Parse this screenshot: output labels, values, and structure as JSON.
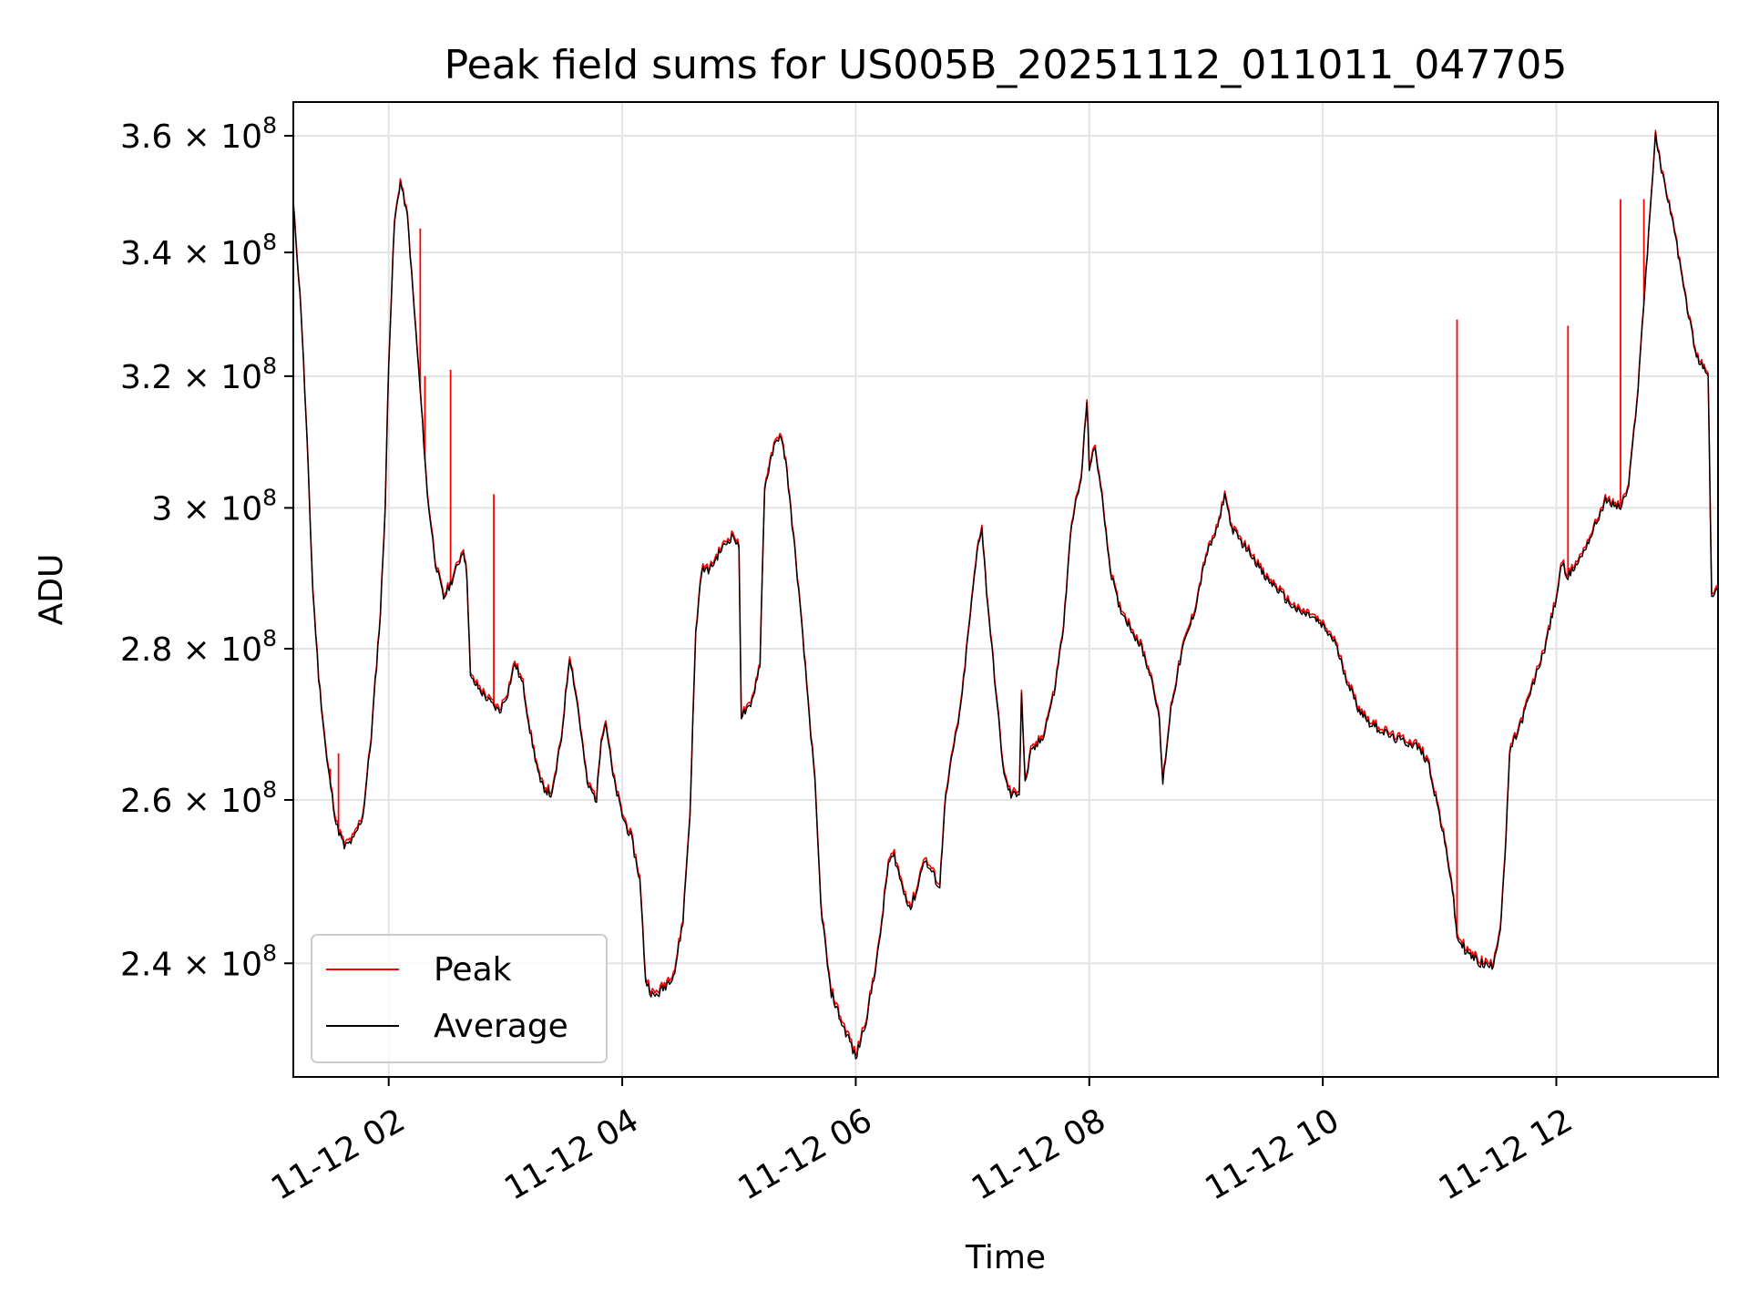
{
  "chart_data": {
    "type": "line",
    "title": "Peak field sums for US005B_20251112_011011_047705",
    "xlabel": "Time",
    "ylabel": "ADU",
    "y_scale": "log",
    "xlim_hours": [
      1.183,
      13.385
    ],
    "ylim": [
      227000000,
      366000000
    ],
    "grid": true,
    "legend_position": "lower-left",
    "x_ticks": [
      {
        "hours": 2,
        "label": "11-12 02"
      },
      {
        "hours": 4,
        "label": "11-12 04"
      },
      {
        "hours": 6,
        "label": "11-12 06"
      },
      {
        "hours": 8,
        "label": "11-12 08"
      },
      {
        "hours": 10,
        "label": "11-12 10"
      },
      {
        "hours": 12,
        "label": "11-12 12"
      }
    ],
    "y_ticks": [
      {
        "value": 240000000,
        "mantissa": "2.4",
        "exponent": "8"
      },
      {
        "value": 260000000,
        "mantissa": "2.6",
        "exponent": "8"
      },
      {
        "value": 280000000,
        "mantissa": "2.8",
        "exponent": "8"
      },
      {
        "value": 300000000,
        "mantissa": "3",
        "exponent": "8"
      },
      {
        "value": 320000000,
        "mantissa": "3.2",
        "exponent": "8"
      },
      {
        "value": 340000000,
        "mantissa": "3.4",
        "exponent": "8"
      },
      {
        "value": 360000000,
        "mantissa": "3.6",
        "exponent": "8"
      }
    ],
    "tick_multiplier": "× 10",
    "series": [
      {
        "name": "Average",
        "color": "#000000",
        "points": [
          [
            1.183,
            348
          ],
          [
            1.25,
            330
          ],
          [
            1.3,
            310
          ],
          [
            1.35,
            288
          ],
          [
            1.4,
            276
          ],
          [
            1.47,
            265
          ],
          [
            1.55,
            257
          ],
          [
            1.62,
            254
          ],
          [
            1.7,
            255
          ],
          [
            1.78,
            258
          ],
          [
            1.85,
            268
          ],
          [
            1.93,
            285
          ],
          [
            1.97,
            300
          ],
          [
            2.0,
            322
          ],
          [
            2.05,
            345
          ],
          [
            2.1,
            352
          ],
          [
            2.16,
            346
          ],
          [
            2.22,
            330
          ],
          [
            2.28,
            315
          ],
          [
            2.33,
            302
          ],
          [
            2.4,
            292
          ],
          [
            2.47,
            287
          ],
          [
            2.53,
            289
          ],
          [
            2.6,
            292
          ],
          [
            2.64,
            294
          ],
          [
            2.67,
            290
          ],
          [
            2.7,
            276
          ],
          [
            2.8,
            274
          ],
          [
            2.88,
            272.5
          ],
          [
            2.95,
            271.5
          ],
          [
            3.02,
            274
          ],
          [
            3.08,
            278
          ],
          [
            3.15,
            275
          ],
          [
            3.22,
            268
          ],
          [
            3.3,
            262
          ],
          [
            3.4,
            260.5
          ],
          [
            3.48,
            268
          ],
          [
            3.55,
            279
          ],
          [
            3.62,
            272
          ],
          [
            3.7,
            262
          ],
          [
            3.78,
            260
          ],
          [
            3.82,
            268
          ],
          [
            3.86,
            270
          ],
          [
            3.92,
            263
          ],
          [
            4.0,
            258
          ],
          [
            4.08,
            255
          ],
          [
            4.15,
            250
          ],
          [
            4.2,
            238
          ],
          [
            4.27,
            236
          ],
          [
            4.35,
            237
          ],
          [
            4.45,
            239
          ],
          [
            4.52,
            245
          ],
          [
            4.58,
            258
          ],
          [
            4.63,
            282
          ],
          [
            4.68,
            291
          ],
          [
            4.75,
            291
          ],
          [
            4.85,
            294
          ],
          [
            4.95,
            296
          ],
          [
            5.0,
            294
          ],
          [
            5.02,
            271
          ],
          [
            5.1,
            272
          ],
          [
            5.18,
            278
          ],
          [
            5.22,
            303
          ],
          [
            5.3,
            309
          ],
          [
            5.35,
            311
          ],
          [
            5.4,
            307
          ],
          [
            5.5,
            290
          ],
          [
            5.58,
            275
          ],
          [
            5.65,
            262
          ],
          [
            5.7,
            247
          ],
          [
            5.78,
            237
          ],
          [
            5.88,
            233
          ],
          [
            5.95,
            231
          ],
          [
            6.0,
            229
          ],
          [
            6.1,
            234
          ],
          [
            6.2,
            242
          ],
          [
            6.28,
            252
          ],
          [
            6.33,
            253
          ],
          [
            6.4,
            249
          ],
          [
            6.47,
            246.5
          ],
          [
            6.53,
            249
          ],
          [
            6.58,
            252.5
          ],
          [
            6.65,
            251
          ],
          [
            6.72,
            249
          ],
          [
            6.76,
            259
          ],
          [
            6.83,
            266
          ],
          [
            6.9,
            272
          ],
          [
            6.97,
            283
          ],
          [
            7.05,
            295
          ],
          [
            7.08,
            297
          ],
          [
            7.12,
            288
          ],
          [
            7.2,
            274
          ],
          [
            7.27,
            263
          ],
          [
            7.33,
            260.5
          ],
          [
            7.4,
            261
          ],
          [
            7.42,
            274
          ],
          [
            7.45,
            262
          ],
          [
            7.5,
            266
          ],
          [
            7.6,
            268
          ],
          [
            7.7,
            274
          ],
          [
            7.78,
            283
          ],
          [
            7.85,
            298
          ],
          [
            7.93,
            304
          ],
          [
            7.98,
            316
          ],
          [
            8.0,
            306
          ],
          [
            8.05,
            309
          ],
          [
            8.12,
            300
          ],
          [
            8.18,
            291
          ],
          [
            8.25,
            286
          ],
          [
            8.35,
            283
          ],
          [
            8.45,
            280
          ],
          [
            8.55,
            275
          ],
          [
            8.6,
            270
          ],
          [
            8.63,
            262
          ],
          [
            8.7,
            272
          ],
          [
            8.8,
            280
          ],
          [
            8.9,
            285
          ],
          [
            9.0,
            293
          ],
          [
            9.1,
            297
          ],
          [
            9.16,
            302
          ],
          [
            9.22,
            297
          ],
          [
            9.3,
            295
          ],
          [
            9.4,
            293
          ],
          [
            9.5,
            290
          ],
          [
            9.6,
            288.5
          ],
          [
            9.7,
            286.5
          ],
          [
            9.8,
            285
          ],
          [
            9.9,
            284.5
          ],
          [
            10.0,
            283
          ],
          [
            10.1,
            281
          ],
          [
            10.2,
            276
          ],
          [
            10.3,
            272
          ],
          [
            10.4,
            270
          ],
          [
            10.5,
            269
          ],
          [
            10.6,
            268
          ],
          [
            10.7,
            267.5
          ],
          [
            10.8,
            267
          ],
          [
            10.9,
            265
          ],
          [
            11.0,
            258
          ],
          [
            11.1,
            250
          ],
          [
            11.15,
            243
          ],
          [
            11.25,
            241
          ],
          [
            11.35,
            240
          ],
          [
            11.45,
            239.5
          ],
          [
            11.52,
            244
          ],
          [
            11.57,
            255
          ],
          [
            11.6,
            266
          ],
          [
            11.7,
            270
          ],
          [
            11.8,
            275
          ],
          [
            11.9,
            280
          ],
          [
            12.0,
            287
          ],
          [
            12.05,
            292
          ],
          [
            12.1,
            290
          ],
          [
            12.2,
            292.5
          ],
          [
            12.3,
            296
          ],
          [
            12.42,
            301
          ],
          [
            12.55,
            300
          ],
          [
            12.62,
            303
          ],
          [
            12.7,
            318
          ],
          [
            12.78,
            340
          ],
          [
            12.85,
            360
          ],
          [
            12.9,
            354
          ],
          [
            13.0,
            345
          ],
          [
            13.1,
            333
          ],
          [
            13.2,
            323
          ],
          [
            13.3,
            320
          ],
          [
            13.33,
            287
          ],
          [
            13.385,
            288
          ]
        ]
      },
      {
        "name": "Peak",
        "color": "#ff0000",
        "offset": 0.4,
        "spikes": [
          [
            1.5,
            264
          ],
          [
            1.57,
            266
          ],
          [
            2.27,
            344
          ],
          [
            2.31,
            320
          ],
          [
            2.53,
            321
          ],
          [
            2.9,
            302
          ],
          [
            5.25,
            306
          ],
          [
            11.15,
            329
          ],
          [
            12.1,
            328
          ],
          [
            12.55,
            349
          ],
          [
            12.75,
            349
          ]
        ]
      }
    ]
  }
}
